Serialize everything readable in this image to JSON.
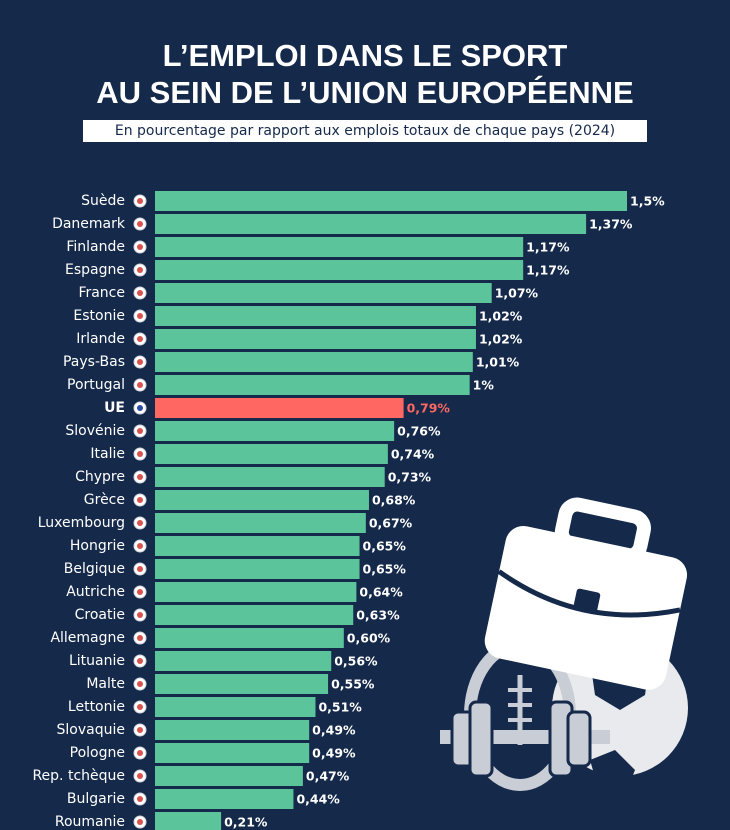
{
  "chart_data": {
    "type": "hbar",
    "title": [
      "L’EMPLOI DANS LE SPORT",
      "AU SEIN DE L’UNION EUROPÉENNE"
    ],
    "subtitle": "En pourcentage par rapport aux emplois totaux de chaque pays (2024)",
    "categories": [
      "Suède",
      "Danemark",
      "Finlande",
      "Espagne",
      "France",
      "Estonie",
      "Irlande",
      "Pays-Bas",
      "Portugal",
      "UE",
      "Slovénie",
      "Italie",
      "Chypre",
      "Grèce",
      "Luxembourg",
      "Hongrie",
      "Belgique",
      "Autriche",
      "Croatie",
      "Allemagne",
      "Lituanie",
      "Malte",
      "Lettonie",
      "Slovaquie",
      "Pologne",
      "Rep. tchèque",
      "Bulgarie",
      "Roumanie"
    ],
    "values": [
      1.5,
      1.37,
      1.17,
      1.17,
      1.07,
      1.02,
      1.02,
      1.01,
      1,
      0.79,
      0.76,
      0.74,
      0.73,
      0.68,
      0.67,
      0.65,
      0.65,
      0.64,
      0.63,
      0.6,
      0.56,
      0.55,
      0.51,
      0.49,
      0.49,
      0.47,
      0.44,
      0.21
    ],
    "value_labels": [
      "1,5%",
      "1,37%",
      "1,17%",
      "1,17%",
      "1,07%",
      "1,02%",
      "1,02%",
      "1,01%",
      "1%",
      "0,79%",
      "0,76%",
      "0,74%",
      "0,73%",
      "0,68%",
      "0,67%",
      "0,65%",
      "0,65%",
      "0,64%",
      "0,63%",
      "0,60%",
      "0,56%",
      "0,55%",
      "0,51%",
      "0,49%",
      "0,49%",
      "0,47%",
      "0,44%",
      "0,21%"
    ],
    "colors": [
      "#5cc49a",
      "#5cc49a",
      "#5cc49a",
      "#5cc49a",
      "#5cc49a",
      "#5cc49a",
      "#5cc49a",
      "#5cc49a",
      "#5cc49a",
      "#ff6762",
      "#5cc49a",
      "#5cc49a",
      "#5cc49a",
      "#5cc49a",
      "#5cc49a",
      "#5cc49a",
      "#5cc49a",
      "#5cc49a",
      "#5cc49a",
      "#5cc49a",
      "#5cc49a",
      "#5cc49a",
      "#5cc49a",
      "#5cc49a",
      "#5cc49a",
      "#5cc49a",
      "#5cc49a",
      "#5cc49a"
    ]
  }
}
